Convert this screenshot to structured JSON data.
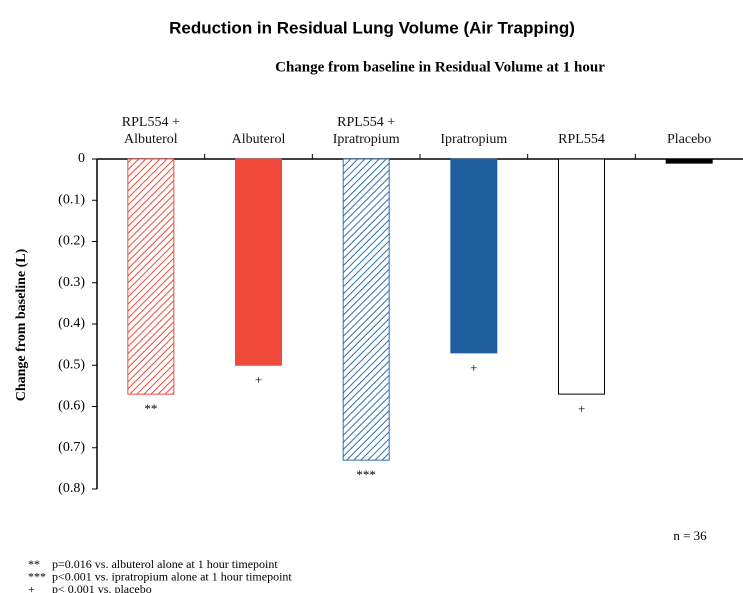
{
  "chart_data": {
    "type": "bar",
    "title": "Reduction in Residual Lung Volume (Air Trapping)",
    "subtitle": "Change from baseline in Residual Volume at 1 hour",
    "y_label": "Change from baseline (L)",
    "categories": [
      "RPL554 +\nAlbuterol",
      "Albuterol",
      "RPL554 +\nIpratropium",
      "Ipratropium",
      "RPL554",
      "Placebo"
    ],
    "values": [
      -0.57,
      -0.5,
      -0.73,
      -0.47,
      -0.57,
      -0.01
    ],
    "colors": [
      "#f04a3c",
      "#f04a3c",
      "#2e6faa",
      "#1f5fa0",
      "#ffffff",
      "#000000"
    ],
    "edge_colors": [
      "#f04a3c",
      "#f04a3c",
      "#2e6faa",
      "#1f5fa0",
      "#000000",
      "#000000"
    ],
    "hatched": [
      true,
      false,
      true,
      false,
      false,
      false
    ],
    "bar_annotations": [
      "**",
      "+",
      "***",
      "+",
      "+",
      null
    ],
    "ylim": [
      -0.8,
      0
    ],
    "yticks": [
      {
        "value": 0,
        "label": "0"
      },
      {
        "value": -0.1,
        "label": "(0.1)"
      },
      {
        "value": -0.2,
        "label": "(0.2)"
      },
      {
        "value": -0.3,
        "label": "(0.3)"
      },
      {
        "value": -0.4,
        "label": "(0.4)"
      },
      {
        "value": -0.5,
        "label": "(0.5)"
      },
      {
        "value": -0.6,
        "label": "(0.6)"
      },
      {
        "value": -0.7,
        "label": "(0.7)"
      },
      {
        "value": -0.8,
        "label": "(0.8)"
      }
    ],
    "note": "n = 36",
    "footnotes": [
      {
        "symbol": "**",
        "text": "p=0.016 vs. albuterol alone at 1 hour timepoint"
      },
      {
        "symbol": "***",
        "text": "p<0.001 vs. ipratropium alone at 1 hour timepoint"
      },
      {
        "symbol": "+",
        "text": "p< 0.001 vs. placebo"
      }
    ]
  }
}
